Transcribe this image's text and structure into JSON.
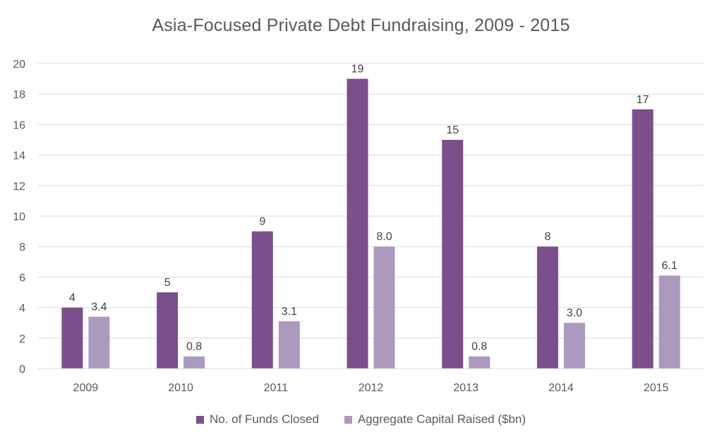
{
  "chart_data": {
    "type": "bar",
    "title": "Asia-Focused Private Debt Fundraising, 2009 - 2015",
    "categories": [
      "2009",
      "2010",
      "2011",
      "2012",
      "2013",
      "2014",
      "2015"
    ],
    "series": [
      {
        "name": "No. of Funds Closed",
        "values": [
          4,
          5,
          9,
          19,
          15,
          8,
          17
        ],
        "labels": [
          "4",
          "5",
          "9",
          "19",
          "15",
          "8",
          "17"
        ],
        "color": "#7a4f8c"
      },
      {
        "name": "Aggregate Capital Raised ($bn)",
        "values": [
          3.4,
          0.8,
          3.1,
          8.0,
          0.8,
          3.0,
          6.1
        ],
        "labels": [
          "3.4",
          "0.8",
          "3.1",
          "8.0",
          "0.8",
          "3.0",
          "6.1"
        ],
        "color": "#ab99be"
      }
    ],
    "ylim": [
      0,
      20
    ],
    "yticks": [
      "0",
      "2",
      "4",
      "6",
      "8",
      "10",
      "12",
      "14",
      "16",
      "18",
      "20"
    ],
    "grid": true,
    "legend_position": "bottom"
  }
}
